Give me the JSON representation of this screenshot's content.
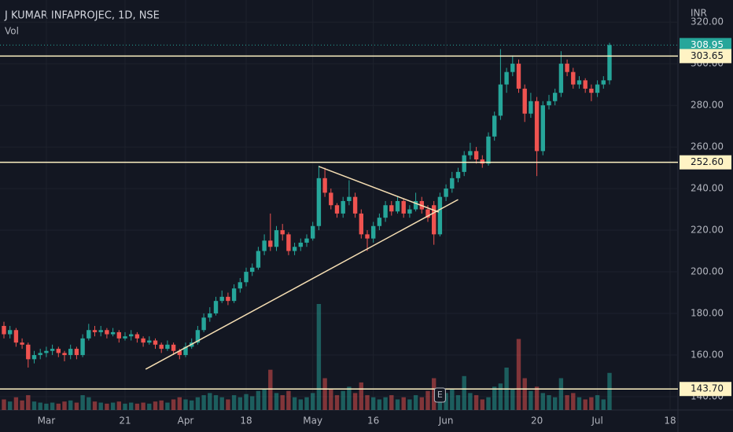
{
  "chart_data": {
    "type": "candlestick",
    "title": "J KUMAR INFAPROJEC, 1D, NSE",
    "subtitle": "Vol",
    "currency": "INR",
    "up_color": "#26a69a",
    "down_color": "#ef5350",
    "xlim": [
      -0.65,
      111.3
    ],
    "ylim": [
      133.6,
      330.6
    ],
    "vlim": [
      0,
      100
    ],
    "yticks": [
      {
        "value": 140,
        "label": "140.00"
      },
      {
        "value": 160,
        "label": "160.00"
      },
      {
        "value": 180,
        "label": "180.00"
      },
      {
        "value": 200,
        "label": "200.00"
      },
      {
        "value": 220,
        "label": "220.00"
      },
      {
        "value": 240,
        "label": "240.00"
      },
      {
        "value": 260,
        "label": "260.00"
      },
      {
        "value": 280,
        "label": "280.00"
      },
      {
        "value": 300,
        "label": "300.00"
      },
      {
        "value": 320,
        "label": "320.00"
      }
    ],
    "xticks": [
      {
        "value": 7,
        "label": "Mar"
      },
      {
        "value": 20,
        "label": "21"
      },
      {
        "value": 30,
        "label": "Apr"
      },
      {
        "value": 40,
        "label": "18"
      },
      {
        "value": 51,
        "label": "May"
      },
      {
        "value": 61,
        "label": "16"
      },
      {
        "value": 73,
        "label": "Jun"
      },
      {
        "value": 88,
        "label": "20"
      },
      {
        "value": 98,
        "label": "Jul"
      },
      {
        "value": 110,
        "label": "18"
      }
    ],
    "ohlc": [
      [
        174,
        176,
        168,
        170
      ],
      [
        170,
        174,
        168,
        172
      ],
      [
        172,
        173,
        164,
        166
      ],
      [
        166,
        168,
        163,
        165
      ],
      [
        165,
        166,
        154,
        158
      ],
      [
        158,
        162,
        156,
        160
      ],
      [
        160,
        163,
        158,
        161
      ],
      [
        161,
        164,
        159,
        162
      ],
      [
        162,
        165,
        160,
        163
      ],
      [
        163,
        164,
        159,
        161
      ],
      [
        161,
        162,
        157,
        160
      ],
      [
        160,
        165,
        158,
        163
      ],
      [
        163,
        164,
        158,
        160
      ],
      [
        160,
        170,
        159,
        168
      ],
      [
        168,
        175,
        167,
        172
      ],
      [
        172,
        174,
        169,
        171
      ],
      [
        171,
        174,
        169,
        172
      ],
      [
        172,
        173,
        168,
        170
      ],
      [
        170,
        173,
        169,
        171
      ],
      [
        171,
        172,
        166,
        168
      ],
      [
        168,
        171,
        167,
        169
      ],
      [
        169,
        172,
        167,
        170
      ],
      [
        170,
        171,
        166,
        168
      ],
      [
        168,
        169,
        164,
        166
      ],
      [
        166,
        169,
        165,
        167
      ],
      [
        167,
        168,
        163,
        165
      ],
      [
        165,
        166,
        161,
        163
      ],
      [
        163,
        167,
        162,
        165
      ],
      [
        165,
        166,
        160,
        162
      ],
      [
        162,
        163,
        158,
        160
      ],
      [
        160,
        166,
        159,
        164
      ],
      [
        164,
        168,
        163,
        166
      ],
      [
        166,
        174,
        165,
        172
      ],
      [
        172,
        180,
        171,
        178
      ],
      [
        178,
        183,
        176,
        180
      ],
      [
        180,
        188,
        179,
        186
      ],
      [
        186,
        191,
        185,
        188
      ],
      [
        188,
        190,
        184,
        186
      ],
      [
        186,
        194,
        185,
        192
      ],
      [
        192,
        197,
        190,
        195
      ],
      [
        195,
        202,
        193,
        200
      ],
      [
        200,
        204,
        198,
        202
      ],
      [
        202,
        212,
        201,
        210
      ],
      [
        210,
        218,
        208,
        215
      ],
      [
        215,
        228,
        210,
        212
      ],
      [
        212,
        222,
        210,
        220
      ],
      [
        220,
        223,
        215,
        218
      ],
      [
        218,
        219,
        208,
        210
      ],
      [
        210,
        214,
        208,
        212
      ],
      [
        212,
        216,
        210,
        214
      ],
      [
        214,
        218,
        212,
        216
      ],
      [
        216,
        224,
        215,
        222
      ],
      [
        222,
        251,
        220,
        245
      ],
      [
        245,
        250,
        236,
        238
      ],
      [
        238,
        240,
        230,
        232
      ],
      [
        232,
        233,
        226,
        228
      ],
      [
        228,
        236,
        226,
        234
      ],
      [
        234,
        244,
        232,
        236
      ],
      [
        236,
        238,
        226,
        228
      ],
      [
        228,
        230,
        216,
        218
      ],
      [
        218,
        220,
        210,
        216
      ],
      [
        216,
        224,
        214,
        222
      ],
      [
        222,
        228,
        220,
        226
      ],
      [
        226,
        234,
        224,
        232
      ],
      [
        232,
        234,
        227,
        229
      ],
      [
        229,
        236,
        228,
        234
      ],
      [
        234,
        235,
        226,
        228
      ],
      [
        228,
        232,
        226,
        230
      ],
      [
        230,
        238,
        229,
        234
      ],
      [
        234,
        236,
        228,
        230
      ],
      [
        230,
        232,
        224,
        226
      ],
      [
        232,
        234,
        213,
        218
      ],
      [
        218,
        238,
        217,
        236
      ],
      [
        236,
        242,
        234,
        240
      ],
      [
        240,
        248,
        238,
        245
      ],
      [
        245,
        250,
        243,
        248
      ],
      [
        248,
        258,
        246,
        256
      ],
      [
        256,
        262,
        254,
        258
      ],
      [
        258,
        260,
        252,
        254
      ],
      [
        254,
        256,
        250,
        252
      ],
      [
        252,
        267,
        251,
        265
      ],
      [
        265,
        277,
        263,
        275
      ],
      [
        275,
        307,
        273,
        290
      ],
      [
        290,
        298,
        286,
        296
      ],
      [
        296,
        304,
        294,
        300
      ],
      [
        300,
        302,
        286,
        288
      ],
      [
        288,
        290,
        272,
        276
      ],
      [
        276,
        286,
        274,
        282
      ],
      [
        282,
        284,
        246,
        258
      ],
      [
        258,
        282,
        256,
        280
      ],
      [
        280,
        285,
        278,
        282
      ],
      [
        282,
        288,
        280,
        286
      ],
      [
        286,
        306,
        284,
        300
      ],
      [
        300,
        302,
        294,
        296
      ],
      [
        296,
        298,
        288,
        290
      ],
      [
        290,
        294,
        288,
        292
      ],
      [
        292,
        293,
        286,
        288
      ],
      [
        288,
        290,
        282,
        286
      ],
      [
        286,
        292,
        284,
        290
      ],
      [
        290,
        294,
        288,
        292
      ],
      [
        292,
        310,
        290,
        308.95
      ]
    ],
    "volume": [
      10,
      8,
      12,
      9,
      14,
      8,
      7,
      6,
      7,
      6,
      8,
      9,
      7,
      14,
      12,
      8,
      7,
      6,
      7,
      8,
      6,
      7,
      6,
      7,
      6,
      8,
      9,
      7,
      10,
      12,
      10,
      9,
      12,
      14,
      16,
      14,
      12,
      10,
      14,
      12,
      15,
      13,
      18,
      20,
      38,
      16,
      14,
      18,
      12,
      10,
      12,
      16,
      100,
      30,
      20,
      14,
      18,
      22,
      16,
      26,
      14,
      12,
      10,
      12,
      14,
      10,
      12,
      10,
      14,
      12,
      18,
      30,
      14,
      16,
      20,
      14,
      32,
      16,
      14,
      10,
      12,
      22,
      25,
      40,
      20,
      67,
      30,
      18,
      22,
      16,
      14,
      12,
      30,
      14,
      16,
      12,
      10,
      12,
      14,
      10,
      35
    ],
    "hlines": [
      303.65,
      {
        "value": 252.6,
        "label": "252.60"
      },
      {
        "value": 143.7,
        "label": "143.70"
      }
    ],
    "last_price": 308.95,
    "trendlines": [
      [
        23.4,
        153.2,
        75,
        234.7
      ],
      [
        52,
        250.6,
        71.8,
        228.7
      ]
    ],
    "earnings_marker": {
      "label": "E",
      "index": 72
    }
  }
}
